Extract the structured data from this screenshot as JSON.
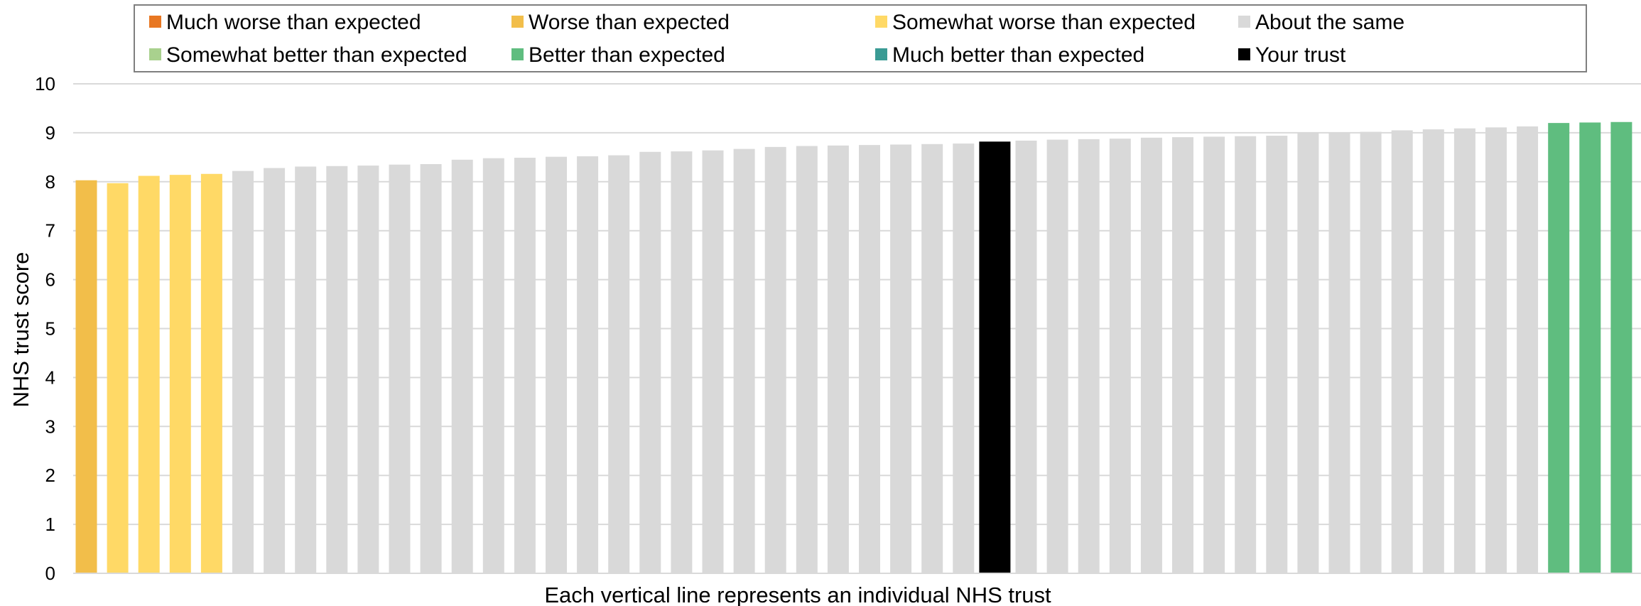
{
  "chart_data": {
    "type": "bar",
    "ylabel": "NHS trust score",
    "xlabel": "Each vertical line represents an individual NHS trust",
    "ylim": [
      0,
      10
    ],
    "yticks": [
      "0",
      "1",
      "2",
      "3",
      "4",
      "5",
      "6",
      "7",
      "8",
      "9",
      "10"
    ],
    "grid": true,
    "legend_position": "top",
    "legend": [
      {
        "key": "much_worse",
        "label": "Much worse than expected",
        "color": "#E87722"
      },
      {
        "key": "worse",
        "label": "Worse than expected",
        "color": "#F2BE4A"
      },
      {
        "key": "somewhat_worse",
        "label": "Somewhat worse than expected",
        "color": "#FFD966"
      },
      {
        "key": "same",
        "label": "About the same",
        "color": "#D9D9D9"
      },
      {
        "key": "somewhat_better",
        "label": "Somewhat better than expected",
        "color": "#A9D18E"
      },
      {
        "key": "better",
        "label": "Better than expected",
        "color": "#5FBD7F"
      },
      {
        "key": "much_better",
        "label": "Much better than expected",
        "color": "#3A9B94"
      },
      {
        "key": "your_trust",
        "label": "Your trust",
        "color": "#000000"
      }
    ],
    "values": [
      8.03,
      7.97,
      8.12,
      8.14,
      8.16,
      8.22,
      8.28,
      8.31,
      8.32,
      8.33,
      8.35,
      8.36,
      8.45,
      8.48,
      8.49,
      8.51,
      8.52,
      8.54,
      8.61,
      8.62,
      8.64,
      8.67,
      8.71,
      8.73,
      8.74,
      8.75,
      8.76,
      8.77,
      8.78,
      8.82,
      8.84,
      8.86,
      8.87,
      8.88,
      8.9,
      8.91,
      8.92,
      8.93,
      8.94,
      9.0,
      9.01,
      9.02,
      9.05,
      9.07,
      9.09,
      9.11,
      9.13,
      9.2,
      9.21,
      9.22
    ],
    "groups": [
      "worse",
      "somewhat_worse",
      "somewhat_worse",
      "somewhat_worse",
      "somewhat_worse",
      "same",
      "same",
      "same",
      "same",
      "same",
      "same",
      "same",
      "same",
      "same",
      "same",
      "same",
      "same",
      "same",
      "same",
      "same",
      "same",
      "same",
      "same",
      "same",
      "same",
      "same",
      "same",
      "same",
      "same",
      "your_trust",
      "same",
      "same",
      "same",
      "same",
      "same",
      "same",
      "same",
      "same",
      "same",
      "same",
      "same",
      "same",
      "same",
      "same",
      "same",
      "same",
      "same",
      "better",
      "better",
      "better"
    ]
  }
}
